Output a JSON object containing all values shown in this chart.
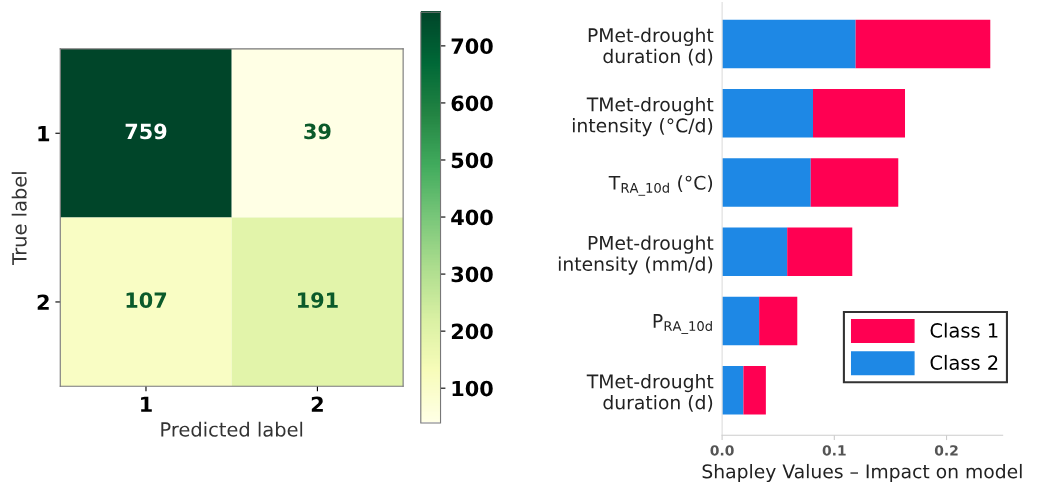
{
  "chart_data": [
    {
      "type": "heatmap",
      "xlabel": "Predicted label",
      "ylabel": "True label",
      "categories": [
        "1",
        "2"
      ],
      "y_categories": [
        "1",
        "2"
      ],
      "cells": [
        [
          759,
          39
        ],
        [
          107,
          191
        ]
      ],
      "clim": [
        39,
        759
      ],
      "cticks": [
        100,
        200,
        300,
        400,
        500,
        600,
        700
      ],
      "data_labels": true
    },
    {
      "type": "bar",
      "orientation": "horizontal",
      "stacked": true,
      "xlabel": "Shapley Values – Impact on model",
      "categories": [
        "PMet-drought\nduration (d)",
        "TMet-drought\nintensity (°C/d)",
        "T$_{RA_10d}$ (°C)",
        "PMet-drought\nintensity (mm/d)",
        "P$_{RA_10d}$",
        "TMet-drought\nduration (d)"
      ],
      "series": [
        {
          "name": "Class 2",
          "color": "#1e88e5",
          "values": [
            0.119,
            0.081,
            0.079,
            0.058,
            0.033,
            0.019
          ]
        },
        {
          "name": "Class 1",
          "color": "#ff0052",
          "values": [
            0.12,
            0.082,
            0.078,
            0.058,
            0.034,
            0.02
          ]
        }
      ],
      "xlim": [
        0,
        0.25
      ],
      "xticks": [
        {
          "value": 0,
          "label": "0.0"
        },
        0.1,
        0.2
      ],
      "legend": "bottom right",
      "grid": false
    }
  ]
}
